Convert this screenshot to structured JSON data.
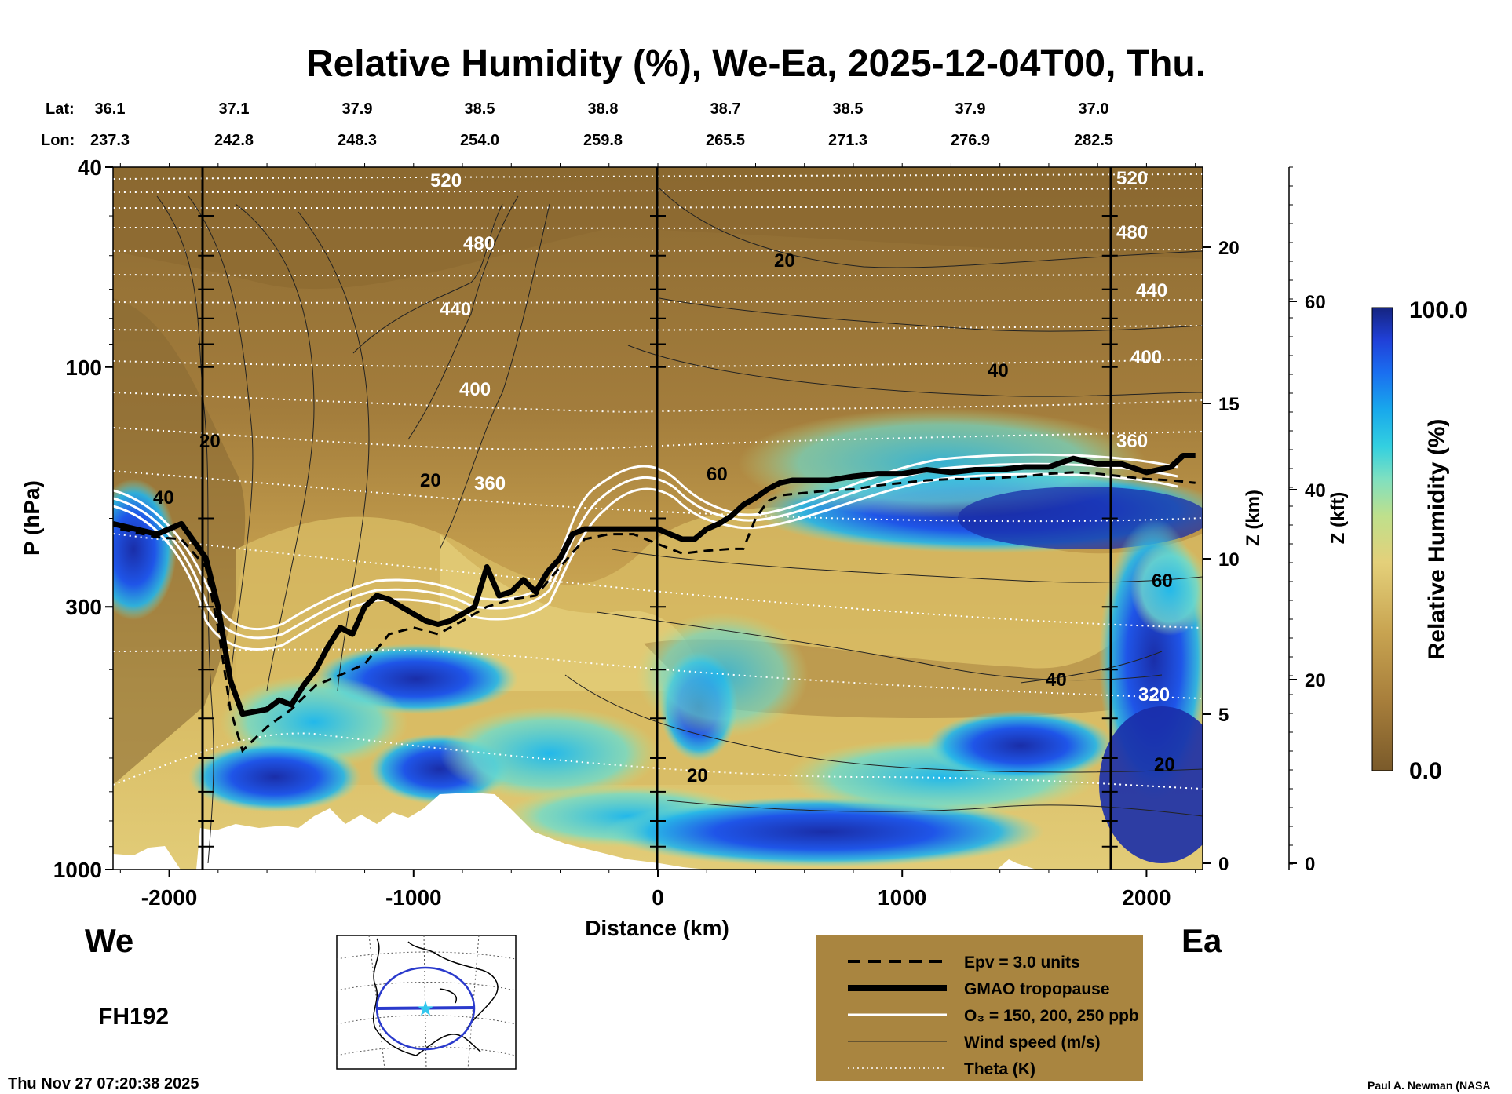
{
  "title": "Relative Humidity (%), We-Ea, 2025-12-04T00, Thu.",
  "header": {
    "lat_label": "Lat:",
    "lon_label": "Lon:",
    "lat_values": [
      "36.1",
      "37.1",
      "37.9",
      "38.5",
      "38.8",
      "38.7",
      "38.5",
      "37.9",
      "37.0"
    ],
    "lon_values": [
      "237.3",
      "242.8",
      "248.3",
      "254.0",
      "259.8",
      "265.5",
      "271.3",
      "276.9",
      "282.5"
    ]
  },
  "axes": {
    "y_label": "P (hPa)",
    "y_ticks": [
      "40",
      "100",
      "300",
      "1000"
    ],
    "x_label": "Distance (km)",
    "x_ticks": [
      "-2000",
      "-1000",
      "0",
      "1000",
      "2000"
    ],
    "z_km_label": "Z (km)",
    "z_km_ticks": [
      "20",
      "15",
      "10",
      "5",
      "0"
    ],
    "z_kft_label": "Z (kft)",
    "z_kft_ticks": [
      "60",
      "40",
      "20",
      "0"
    ]
  },
  "colorbar": {
    "label": "Relative Humidity (%)",
    "max_label": "100.0",
    "min_label": "0.0",
    "colors_low_to_high": [
      "#7a5a2a",
      "#9a7536",
      "#b38c42",
      "#c8a451",
      "#d9bd62",
      "#e4d07a",
      "#bfe08c",
      "#7fe0c0",
      "#33d0e0",
      "#18a8ec",
      "#1a6ef0",
      "#2040d8",
      "#1a2ea8",
      "#152480"
    ]
  },
  "direction": {
    "west": "We",
    "east": "Ea"
  },
  "forecast_hour": "FH192",
  "timestamp": "Thu Nov 27 07:20:38 2025",
  "credit": "Paul A. Newman (NASA",
  "legend": [
    {
      "label": "Epv = 3.0 units",
      "style": "dashed-black"
    },
    {
      "label": "GMAO tropopause",
      "style": "thick-black"
    },
    {
      "label": "O₃ = 150, 200, 250 ppb",
      "style": "white"
    },
    {
      "label": "Wind speed (m/s)",
      "style": "thin-black"
    },
    {
      "label": "Theta (K)",
      "style": "dotted-white"
    }
  ],
  "contour_labels": {
    "theta": [
      "520",
      "480",
      "440",
      "400",
      "360",
      "320"
    ],
    "wind": [
      "20",
      "40",
      "60"
    ]
  },
  "chart_data": {
    "type": "heatmap",
    "title": "Relative Humidity (%), We-Ea, 2025-12-04T00, Thu.",
    "xlabel": "Distance (km)",
    "ylabel": "P (hPa)",
    "xlim": [
      -2230,
      2230
    ],
    "ylim": [
      1000,
      40
    ],
    "y_scale": "log",
    "value_range": [
      0.0,
      100.0
    ],
    "vertical_markers_km": [
      -1850,
      0,
      1850
    ],
    "tropopause": {
      "x": [
        -2230,
        -2050,
        -1950,
        -1850,
        -1800,
        -1750,
        -1700,
        -1650,
        -1600,
        -1550,
        -1500,
        -1450,
        -1400,
        -1350,
        -1300,
        -1250,
        -1200,
        -1150,
        -1100,
        -1050,
        -1000,
        -950,
        -900,
        -850,
        -800,
        -750,
        -700,
        -650,
        -600,
        -550,
        -500,
        -450,
        -400,
        -350,
        -300,
        -250,
        -200,
        -150,
        -100,
        -50,
        0,
        50,
        100,
        150,
        200,
        250,
        300,
        350,
        400,
        450,
        500,
        550,
        600,
        700,
        800,
        900,
        1000,
        1100,
        1200,
        1300,
        1400,
        1500,
        1600,
        1700,
        1800,
        1900,
        2000,
        2100,
        2150,
        2200
      ],
      "p": [
        205,
        215,
        205,
        240,
        300,
        420,
        490,
        485,
        480,
        460,
        470,
        430,
        400,
        360,
        330,
        340,
        300,
        285,
        290,
        300,
        310,
        320,
        325,
        320,
        310,
        300,
        250,
        285,
        280,
        265,
        280,
        255,
        240,
        215,
        210,
        210,
        210,
        210,
        210,
        210,
        210,
        215,
        220,
        220,
        210,
        205,
        198,
        188,
        182,
        175,
        170,
        168,
        168,
        168,
        165,
        163,
        163,
        160,
        162,
        160,
        160,
        158,
        158,
        152,
        156,
        156,
        162,
        158,
        150,
        150
      ]
    },
    "epv_3_units": {
      "x": [
        -2200,
        -2050,
        -1950,
        -1850,
        -1800,
        -1750,
        -1700,
        -1600,
        -1500,
        -1400,
        -1300,
        -1200,
        -1100,
        -1000,
        -900,
        -800,
        -700,
        -600,
        -500,
        -400,
        -300,
        -200,
        -100,
        0,
        100,
        200,
        300,
        350,
        400,
        450,
        500,
        600,
        700,
        800,
        900,
        1000,
        1100,
        1200,
        1300,
        1400,
        1500,
        1600,
        1700,
        1800,
        1900,
        2000,
        2100,
        2200
      ],
      "p": [
        210,
        218,
        220,
        250,
        330,
        480,
        580,
        520,
        480,
        430,
        410,
        390,
        340,
        330,
        340,
        320,
        300,
        290,
        285,
        250,
        220,
        215,
        215,
        225,
        235,
        232,
        230,
        230,
        200,
        185,
        180,
        178,
        176,
        175,
        172,
        170,
        168,
        167,
        167,
        166,
        165,
        163,
        162,
        163,
        165,
        167,
        168,
        170
      ]
    },
    "map_inset": "North America, cross-section from 36.1N 237.3E to 37.0N 282.5E"
  }
}
